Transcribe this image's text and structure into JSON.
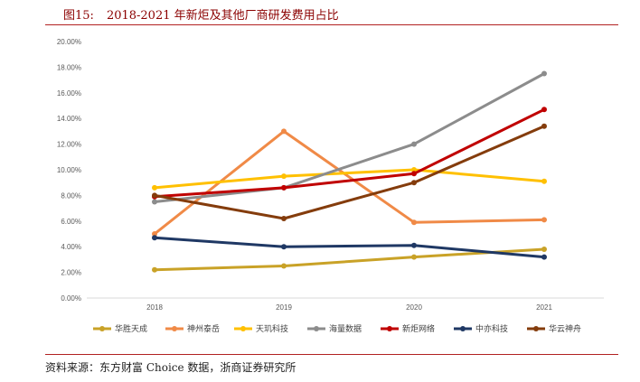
{
  "figure": {
    "number": "图15:",
    "title": "2018-2021 年新炬及其他厂商研发费用占比",
    "source": "资料来源：东方财富 Choice 数据，浙商证券研究所"
  },
  "chart_data": {
    "type": "line",
    "categories": [
      "2018",
      "2019",
      "2020",
      "2021"
    ],
    "y_ticks": [
      "0.00%",
      "2.00%",
      "4.00%",
      "6.00%",
      "8.00%",
      "10.00%",
      "12.00%",
      "14.00%",
      "16.00%",
      "18.00%",
      "20.00%"
    ],
    "ylim": [
      0,
      20
    ],
    "grid": false,
    "legend_position": "bottom",
    "series": [
      {
        "name": "华胜天成",
        "color": "#c9a227",
        "values": [
          2.2,
          2.5,
          3.2,
          3.8
        ]
      },
      {
        "name": "神州泰岳",
        "color": "#f08a47",
        "values": [
          5.0,
          13.0,
          5.9,
          6.1
        ]
      },
      {
        "name": "天玑科技",
        "color": "#ffc000",
        "values": [
          8.6,
          9.5,
          10.0,
          9.1
        ]
      },
      {
        "name": "海量数据",
        "color": "#8c8c8c",
        "values": [
          7.5,
          8.6,
          12.0,
          17.5
        ]
      },
      {
        "name": "新炬网络",
        "color": "#c00000",
        "values": [
          7.9,
          8.6,
          9.7,
          14.7
        ]
      },
      {
        "name": "中亦科技",
        "color": "#1f3864",
        "values": [
          4.7,
          4.0,
          4.1,
          3.2
        ]
      },
      {
        "name": "华云神舟",
        "color": "#843c0c",
        "values": [
          8.0,
          6.2,
          9.0,
          13.4
        ]
      }
    ]
  }
}
